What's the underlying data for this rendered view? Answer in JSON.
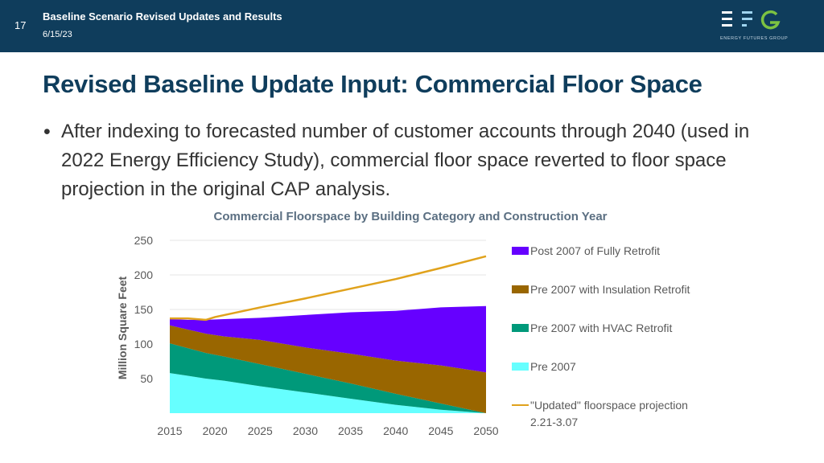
{
  "header": {
    "slide_number": "17",
    "title": "Baseline Scenario Revised Updates and Results",
    "date": "6/15/23",
    "logo_subtitle": "ENERGY FUTURES GROUP"
  },
  "page_title": "Revised Baseline Update Input: Commercial Floor Space",
  "bullet": {
    "marker": "•",
    "text": "After indexing to forecasted number of customer accounts through 2040 (used in 2022 Energy Efficiency Study), commercial floor space reverted to floor space projection in the original CAP analysis."
  },
  "colors": {
    "header_bg": "#0f3d5c",
    "title": "#0f3d5c",
    "post2007": "#6600ff",
    "insulation": "#996600",
    "hvac": "#00997a",
    "pre2007": "#66ffff",
    "updated_line": "#e0a21c"
  },
  "chart_data": {
    "type": "area",
    "title": "Commercial Floorspace by Building Category and Construction Year",
    "xlabel": "",
    "ylabel": "Million Square Feet",
    "ylim": [
      0,
      250
    ],
    "yticks": [
      250,
      200,
      150,
      100,
      50
    ],
    "xticks": [
      2015,
      2020,
      2025,
      2030,
      2035,
      2040,
      2045,
      2050
    ],
    "grid": true,
    "legend_position": "right",
    "x": [
      2015,
      2017,
      2019,
      2021,
      2025,
      2030,
      2035,
      2040,
      2045,
      2050
    ],
    "series": [
      {
        "name": "Pre 2007",
        "values": [
          58,
          54,
          50,
          47,
          39,
          30,
          21,
          12,
          5,
          0
        ]
      },
      {
        "name": "Pre 2007 with HVAC Retrofit",
        "values": [
          43,
          40,
          37,
          35,
          32,
          27,
          22,
          16,
          9,
          0
        ]
      },
      {
        "name": "Pre 2007 with Insulation Retrofit",
        "values": [
          26,
          27,
          28,
          29,
          35,
          38,
          43,
          48,
          55,
          59
        ]
      },
      {
        "name": "Post 2007 of Fully Retrofit",
        "values": [
          9,
          14,
          20,
          25,
          32,
          47,
          60,
          72,
          84,
          96
        ]
      }
    ],
    "line": {
      "name": "\"Updated\" floorspace projection",
      "name_line2": "2.21-3.07",
      "x": [
        2015,
        2017,
        2019,
        2020,
        2025,
        2030,
        2035,
        2040,
        2045,
        2050
      ],
      "values": [
        137,
        137,
        135,
        139,
        153,
        166,
        180,
        194,
        210,
        227
      ]
    }
  }
}
